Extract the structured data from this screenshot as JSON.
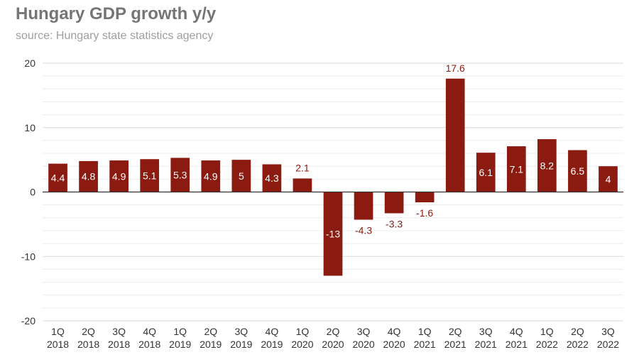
{
  "title": "Hungary GDP growth y/y",
  "subtitle": "source: Hungary state statistics agency",
  "colors": {
    "bar": "#8b1a10",
    "label_inside": "#ffffff",
    "label_outside": "#8b1a10",
    "major_grid": "#d9d9d9",
    "minor_grid": "#ececec",
    "zero_line": "#333333"
  },
  "chart_data": {
    "type": "bar",
    "title": "Hungary GDP growth y/y",
    "subtitle": "source: Hungary state statistics agency",
    "categories": [
      [
        "1Q",
        "2018"
      ],
      [
        "2Q",
        "2018"
      ],
      [
        "3Q",
        "2018"
      ],
      [
        "4Q",
        "2018"
      ],
      [
        "1Q",
        "2019"
      ],
      [
        "2Q",
        "2019"
      ],
      [
        "3Q",
        "2019"
      ],
      [
        "4Q",
        "2019"
      ],
      [
        "1Q",
        "2020"
      ],
      [
        "2Q",
        "2020"
      ],
      [
        "3Q",
        "2020"
      ],
      [
        "4Q",
        "2020"
      ],
      [
        "1Q",
        "2021"
      ],
      [
        "2Q",
        "2021"
      ],
      [
        "3Q",
        "2021"
      ],
      [
        "4Q",
        "2021"
      ],
      [
        "1Q",
        "2022"
      ],
      [
        "2Q",
        "2022"
      ],
      [
        "3Q",
        "2022"
      ]
    ],
    "values": [
      4.4,
      4.8,
      4.9,
      5.1,
      5.3,
      4.9,
      5,
      4.3,
      2.1,
      -13,
      -4.3,
      -3.3,
      -1.6,
      17.6,
      6.1,
      7.1,
      8.2,
      6.5,
      4
    ],
    "data_labels": [
      "4.4",
      "4.8",
      "4.9",
      "5.1",
      "5.3",
      "4.9",
      "5",
      "4.3",
      "2.1",
      "-13",
      "-4.3",
      "-3.3",
      "-1.6",
      "17.6",
      "6.1",
      "7.1",
      "8.2",
      "6.5",
      "4"
    ],
    "label_inside": [
      true,
      true,
      true,
      true,
      true,
      true,
      true,
      true,
      false,
      true,
      false,
      false,
      false,
      false,
      true,
      true,
      true,
      true,
      true
    ],
    "xlabel": "",
    "ylabel": "",
    "ylim": [
      -20,
      20
    ],
    "y_ticks": [
      -20,
      -10,
      0,
      10,
      20
    ],
    "y_tick_labels": [
      "-20",
      "-10",
      "0",
      "10",
      "20"
    ],
    "minor_grid_step": 2,
    "grid": true,
    "legend": "none"
  }
}
